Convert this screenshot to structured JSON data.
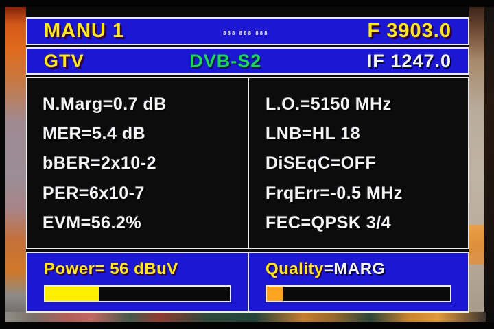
{
  "colors": {
    "osd_blue": "#1c17d2",
    "panel_black": "#0c0c0c",
    "border_white": "#ececec",
    "text_yellow": "#ffe81e",
    "text_white": "#f4f4f4",
    "text_green": "#1fd45f",
    "power_bar_fill": "#ffee00",
    "quality_bar_fill": "#ffa41e"
  },
  "header": {
    "title": "MANU 1",
    "mini_status": "888 888 888",
    "frequency": "F 3903.0"
  },
  "subheader": {
    "channel": "GTV",
    "standard": "DVB-S2",
    "if_frequency": "IF 1247.0"
  },
  "measurements": {
    "left": [
      "N.Marg=0.7 dB",
      "MER=5.4 dB",
      "bBER=2x10-2",
      "PER=6x10-7",
      "EVM=56.2%"
    ],
    "right": [
      "L.O.=5150 MHz",
      "LNB=HL 18",
      "DiSEqC=OFF",
      "FrqErr=-0.5 MHz",
      "FEC=QPSK 3/4"
    ]
  },
  "bottom": {
    "power": {
      "label": "Power= 56 dBuV",
      "bar_percent": 29
    },
    "quality": {
      "label": "Quality",
      "value": "=MARG",
      "bar_percent": 9
    }
  }
}
